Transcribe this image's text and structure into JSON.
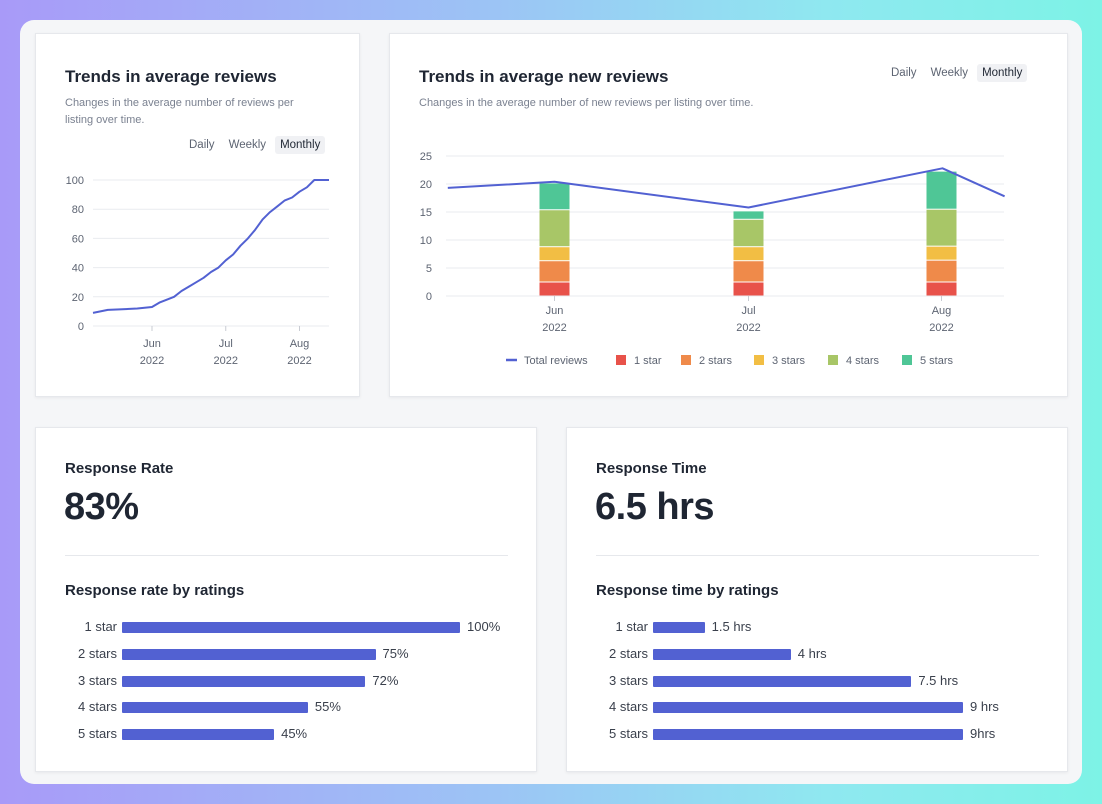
{
  "card_avg_reviews": {
    "title": "Trends in average reviews",
    "subtitle_line1": "Changes in the average number of reviews per",
    "subtitle_line2": "listing over time.",
    "period_tabs": [
      "Daily",
      "Weekly",
      "Monthly"
    ],
    "active_tab": "Monthly"
  },
  "card_new_reviews": {
    "title": "Trends in average new reviews",
    "subtitle": "Changes in the average number of new reviews per listing over time.",
    "period_tabs": [
      "Daily",
      "Weekly",
      "Monthly"
    ],
    "active_tab": "Monthly"
  },
  "chart_data": [
    {
      "type": "line",
      "title": "Trends in average reviews",
      "ylim": [
        0,
        100
      ],
      "yticks": [
        0,
        20,
        40,
        60,
        80,
        100
      ],
      "xticks": [
        {
          "label": "Jun",
          "sub": "2022"
        },
        {
          "label": "Jul",
          "sub": "2022"
        },
        {
          "label": "Aug",
          "sub": "2022"
        }
      ],
      "x_domain": [
        0,
        32
      ],
      "x_tick_positions": [
        8,
        18,
        28
      ],
      "series": [
        {
          "x": [
            0,
            2,
            4,
            6,
            8,
            9,
            10,
            11,
            12,
            13,
            14,
            15,
            16,
            17,
            18,
            19,
            20,
            21,
            22,
            23,
            24,
            25,
            26,
            27,
            28,
            29,
            30,
            31,
            32
          ],
          "values": [
            9,
            11,
            11.5,
            12,
            13,
            16,
            18,
            20,
            24,
            27,
            30,
            33,
            37,
            40,
            45,
            49,
            55,
            60,
            66,
            73,
            78,
            82,
            86,
            88,
            92,
            95,
            100,
            100,
            100
          ]
        }
      ],
      "grid": true,
      "color": "#5261d2"
    },
    {
      "type": "bar",
      "stacked": true,
      "title": "Trends in average new reviews",
      "ylim": [
        0,
        25
      ],
      "yticks": [
        0,
        5,
        10,
        15,
        20,
        25
      ],
      "categories": [
        "Jun",
        "Jul",
        "Aug"
      ],
      "category_sub": [
        "2022",
        "2022",
        "2022"
      ],
      "series": [
        {
          "name": "1 star",
          "color": "#e8524a",
          "values": [
            2.5,
            2.5,
            2.5
          ]
        },
        {
          "name": "2 stars",
          "color": "#ef8a4a",
          "values": [
            3.8,
            3.8,
            3.9
          ]
        },
        {
          "name": "3 stars",
          "color": "#f2be44",
          "values": [
            2.5,
            2.5,
            2.5
          ]
        },
        {
          "name": "4 stars",
          "color": "#a8c667",
          "values": [
            6.6,
            4.9,
            6.6
          ]
        },
        {
          "name": "5 stars",
          "color": "#4fc696",
          "values": [
            4.8,
            1.5,
            6.8
          ]
        }
      ],
      "line_series": {
        "name": "Total reviews",
        "color": "#5261d2",
        "x": [
          -0.55,
          0,
          1,
          2,
          2.32
        ],
        "values": [
          19.3,
          20.4,
          15.8,
          22.8,
          17.8
        ]
      },
      "legend": "bottom",
      "grid": true
    }
  ],
  "response_rate": {
    "label": "Response Rate",
    "value": "83%",
    "section_title": "Response rate by ratings",
    "max": 100,
    "rows": [
      {
        "label": "1 star",
        "value": 100,
        "display": "100%"
      },
      {
        "label": "2 stars",
        "value": 75,
        "display": "75%"
      },
      {
        "label": "3 stars",
        "value": 72,
        "display": "72%"
      },
      {
        "label": "4 stars",
        "value": 55,
        "display": "55%"
      },
      {
        "label": "5 stars",
        "value": 45,
        "display": "45%"
      }
    ]
  },
  "response_time": {
    "label": "Response Time",
    "value": "6.5 hrs",
    "section_title": "Response time by ratings",
    "max": 9,
    "rows": [
      {
        "label": "1 star",
        "value": 1.5,
        "display": "1.5 hrs"
      },
      {
        "label": "2 stars",
        "value": 4,
        "display": "4 hrs"
      },
      {
        "label": "3 stars",
        "value": 7.5,
        "display": "7.5 hrs"
      },
      {
        "label": "4 stars",
        "value": 9,
        "display": "9 hrs"
      },
      {
        "label": "5 stars",
        "value": 9,
        "display": "9hrs"
      }
    ]
  },
  "colors": {
    "accent": "#5261d2",
    "text": "#1f2633",
    "muted": "#7a8190",
    "grid": "#e9ebef"
  }
}
